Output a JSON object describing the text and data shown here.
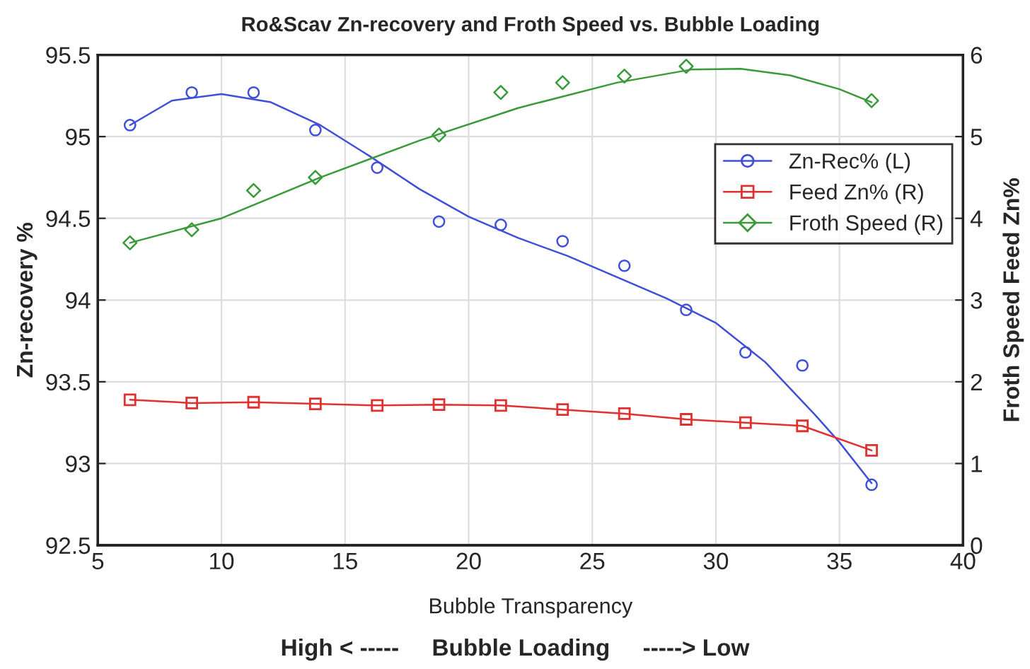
{
  "chart_data": {
    "type": "scatter",
    "title": "Ro&Scav Zn-recovery and Froth Speed vs. Bubble Loading",
    "xlabel": "Bubble Transparency",
    "ylabel": "Zn-recovery %",
    "y2label": "Froth Speed Feed Zn%",
    "annotations": [
      "High < -----     Bubble Loading     -----> Low"
    ],
    "x": [
      6.3,
      8.8,
      11.3,
      13.8,
      16.3,
      18.8,
      21.3,
      23.8,
      26.3,
      28.8,
      31.2,
      33.5,
      36.3
    ],
    "series": [
      {
        "name": "Zn-Rec% (L)",
        "marker": "circle",
        "color": "#3f4fd8",
        "values": [
          95.07,
          95.27,
          95.27,
          95.04,
          94.81,
          94.48,
          94.46,
          94.36,
          94.21,
          93.94,
          93.68,
          93.6,
          92.87
        ]
      },
      {
        "name": "Feed Zn% (R)",
        "type": "line",
        "marker": "square",
        "axis": "y2",
        "color": "#e03030",
        "values": [
          1.78,
          1.74,
          1.75,
          1.73,
          1.71,
          1.72,
          1.71,
          1.66,
          1.61,
          1.54,
          1.5,
          1.46,
          1.16
        ]
      },
      {
        "name": "Froth Speed (R)",
        "type": "scatter",
        "marker": "diamond",
        "axis": "y2",
        "color": "#3a9a3a",
        "values": [
          3.7,
          3.86,
          4.34,
          4.5,
          null,
          5.02,
          5.54,
          5.66,
          5.74,
          5.86,
          null,
          null,
          5.44
        ]
      },
      {
        "type": "line",
        "marker": "none",
        "color": "#3f4fd8",
        "x": [
          6.3,
          8,
          10,
          12,
          14,
          16,
          18,
          20,
          22,
          24,
          26,
          28,
          30,
          32,
          34,
          35,
          36.3
        ],
        "values": [
          95.07,
          95.22,
          95.26,
          95.21,
          95.07,
          94.88,
          94.68,
          94.51,
          94.38,
          94.27,
          94.14,
          94.01,
          93.86,
          93.62,
          93.3,
          93.13,
          92.88
        ]
      },
      {
        "type": "line",
        "marker": "none",
        "axis": "y2",
        "color": "#3a9a3a",
        "x": [
          6.3,
          10,
          14,
          18,
          22,
          26,
          29,
          31,
          33,
          35,
          36.3
        ],
        "values": [
          3.7,
          4.0,
          4.5,
          4.95,
          5.35,
          5.66,
          5.82,
          5.83,
          5.75,
          5.58,
          5.42
        ]
      }
    ],
    "xlim": [
      5,
      40
    ],
    "xticks": [
      5,
      10,
      15,
      20,
      25,
      30,
      35,
      40
    ],
    "ylim": [
      92.5,
      95.5
    ],
    "yticks": [
      92.5,
      93,
      93.5,
      94,
      94.5,
      95,
      95.5
    ],
    "y2lim": [
      0,
      6
    ],
    "y2ticks": [
      0,
      1,
      2,
      3,
      4,
      5,
      6
    ],
    "grid": true,
    "legend": "top right"
  }
}
